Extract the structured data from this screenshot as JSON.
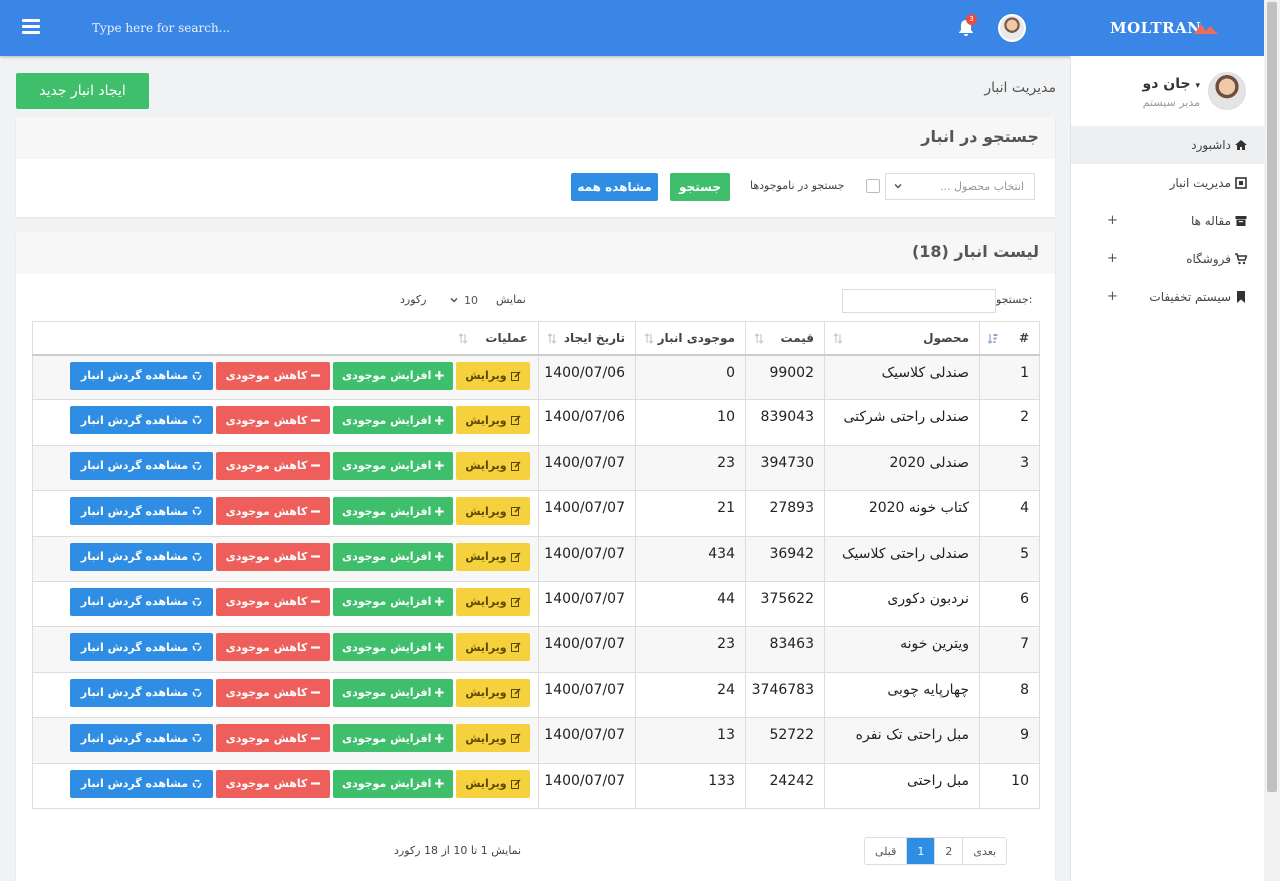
{
  "topbar": {
    "search_placeholder": "Type here for search...",
    "notifications_count": "3",
    "brand": "MOLTRAN"
  },
  "sidebar": {
    "user_name": "جان دو",
    "user_role": "مدیر سیستم",
    "items": [
      {
        "label": "داشبورد",
        "icon": "home-icon",
        "active": true
      },
      {
        "label": "مدیریت انبار",
        "icon": "warehouse-icon"
      },
      {
        "label": "مقاله ها",
        "icon": "archive-icon",
        "expandable": true
      },
      {
        "label": "فروشگاه",
        "icon": "cart-icon",
        "expandable": true
      },
      {
        "label": "سیستم تخفیفات",
        "icon": "bookmark-icon",
        "expandable": true
      }
    ]
  },
  "page": {
    "title": "مدیریت انبار",
    "create_button": "ایجاد انبار جدید"
  },
  "search_panel": {
    "title": "جستجو در انبار",
    "product_placeholder": "انتخاب محصول ...",
    "out_of_stock_label": "جستجو در ناموجودها",
    "search_button": "جستجو",
    "view_all_button": "مشاهده همه"
  },
  "list_panel": {
    "title": "لیست انبار (18)",
    "search_label": "جستجو:",
    "show_label": "نمایش",
    "page_length": "10",
    "records_label": "رکورد",
    "columns": [
      "#",
      "محصول",
      "قیمت",
      "موجودی انبار",
      "تاریخ ایجاد",
      "عملیات"
    ],
    "actions": {
      "edit": "ویرایش",
      "increase": "افزایش موجودی",
      "decrease": "کاهش موجودی",
      "history": "مشاهده گردش انبار"
    },
    "rows": [
      {
        "num": "1",
        "product": "صندلی کلاسیک",
        "price": "99002",
        "stock": "0",
        "date": "1400/07/06"
      },
      {
        "num": "2",
        "product": "صندلی راحتی شرکتی",
        "price": "839043",
        "stock": "10",
        "date": "1400/07/06"
      },
      {
        "num": "3",
        "product": "صندلی 2020",
        "price": "394730",
        "stock": "23",
        "date": "1400/07/07"
      },
      {
        "num": "4",
        "product": "کتاب خونه 2020",
        "price": "27893",
        "stock": "21",
        "date": "1400/07/07"
      },
      {
        "num": "5",
        "product": "صندلی راحتی کلاسیک",
        "price": "36942",
        "stock": "434",
        "date": "1400/07/07"
      },
      {
        "num": "6",
        "product": "نردبون دکوری",
        "price": "375622",
        "stock": "44",
        "date": "1400/07/07"
      },
      {
        "num": "7",
        "product": "ویترین خونه",
        "price": "83463",
        "stock": "23",
        "date": "1400/07/07"
      },
      {
        "num": "8",
        "product": "چهارپایه چوبی",
        "price": "3746783",
        "stock": "24",
        "date": "1400/07/07"
      },
      {
        "num": "9",
        "product": "مبل راحتی تک نفره",
        "price": "52722",
        "stock": "13",
        "date": "1400/07/07"
      },
      {
        "num": "10",
        "product": "مبل راحتی",
        "price": "24242",
        "stock": "133",
        "date": "1400/07/07"
      }
    ],
    "info": "نمایش 1 تا 10 از 18 رکورد",
    "pagination": {
      "prev": "قبلی",
      "pages": [
        "1",
        "2"
      ],
      "current": "1",
      "next": "بعدی"
    }
  }
}
